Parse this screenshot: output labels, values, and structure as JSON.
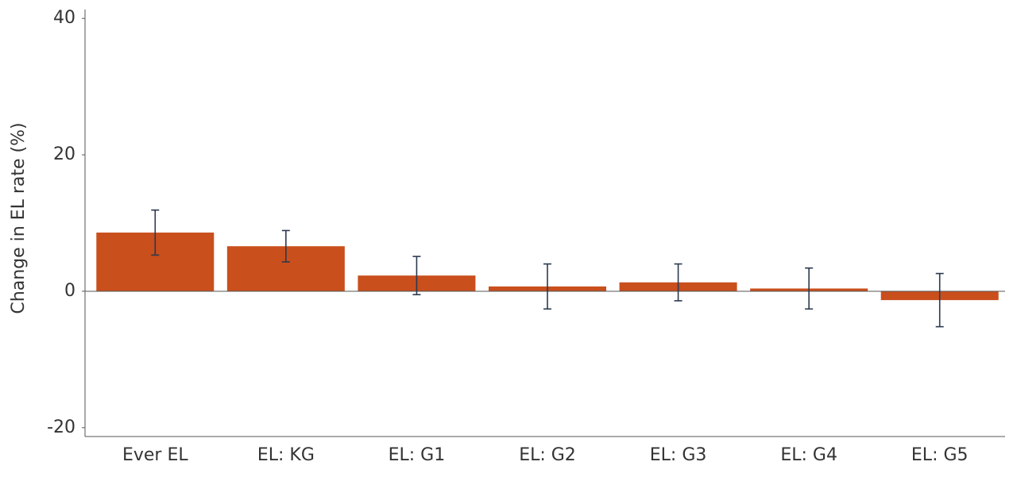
{
  "chart_data": {
    "type": "bar",
    "y_label": "Change in EL rate (%)",
    "categories": [
      "Ever EL",
      "EL: KG",
      "EL: G1",
      "EL: G2",
      "EL: G3",
      "EL: G4",
      "EL: G5"
    ],
    "values": [
      8.6,
      6.6,
      2.3,
      0.7,
      1.3,
      0.4,
      -1.3
    ],
    "errors": [
      3.3,
      2.3,
      2.8,
      3.3,
      2.7,
      3.0,
      3.9
    ],
    "color": "#c94f1d",
    "error_color": "#2b3a4f",
    "ylim": [
      -21.3,
      41.3
    ],
    "yticks": [
      -20,
      0,
      20,
      40
    ],
    "grid": false
  }
}
